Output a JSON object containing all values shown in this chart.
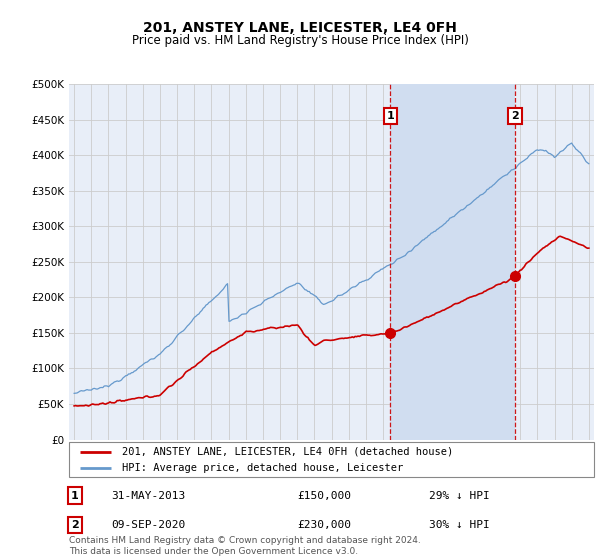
{
  "title": "201, ANSTEY LANE, LEICESTER, LE4 0FH",
  "subtitle": "Price paid vs. HM Land Registry's House Price Index (HPI)",
  "ylim": [
    0,
    500000
  ],
  "yticks": [
    0,
    50000,
    100000,
    150000,
    200000,
    250000,
    300000,
    350000,
    400000,
    450000,
    500000
  ],
  "ytick_labels": [
    "£0",
    "£50K",
    "£100K",
    "£150K",
    "£200K",
    "£250K",
    "£300K",
    "£350K",
    "£400K",
    "£450K",
    "£500K"
  ],
  "background_color": "#ffffff",
  "plot_bg_color": "#e8eef8",
  "shade_color": "#d0ddf0",
  "grid_color": "#cccccc",
  "transaction1": {
    "date": "31-MAY-2013",
    "price": 150000,
    "hpi_diff": "29% ↓ HPI",
    "x": 2013.42
  },
  "transaction2": {
    "date": "09-SEP-2020",
    "price": 230000,
    "hpi_diff": "30% ↓ HPI",
    "x": 2020.69
  },
  "legend_line1": "201, ANSTEY LANE, LEICESTER, LE4 0FH (detached house)",
  "legend_line2": "HPI: Average price, detached house, Leicester",
  "footer": "Contains HM Land Registry data © Crown copyright and database right 2024.\nThis data is licensed under the Open Government Licence v3.0.",
  "line_red_color": "#cc0000",
  "line_blue_color": "#6699cc",
  "vline_color": "#cc0000",
  "annotation_box_color": "#cc0000",
  "xlim_left": 1994.7,
  "xlim_right": 2025.3
}
